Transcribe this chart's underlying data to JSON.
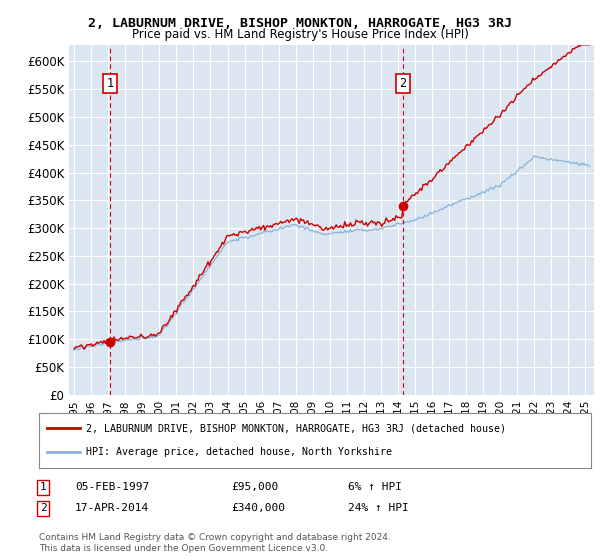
{
  "title": "2, LABURNUM DRIVE, BISHOP MONKTON, HARROGATE, HG3 3RJ",
  "subtitle": "Price paid vs. HM Land Registry's House Price Index (HPI)",
  "ytick_values": [
    0,
    50000,
    100000,
    150000,
    200000,
    250000,
    300000,
    350000,
    400000,
    450000,
    500000,
    550000,
    600000
  ],
  "ylim": [
    0,
    630000
  ],
  "xlim_start": 1994.7,
  "xlim_end": 2025.5,
  "bg_color": "#dce6f1",
  "grid_color": "#ffffff",
  "hpi_line_color": "#8ab4d8",
  "price_line_color": "#cc0000",
  "sale1_x": 1997.09,
  "sale1_y": 95000,
  "sale2_x": 2014.29,
  "sale2_y": 340000,
  "legend_price_label": "2, LABURNUM DRIVE, BISHOP MONKTON, HARROGATE, HG3 3RJ (detached house)",
  "legend_hpi_label": "HPI: Average price, detached house, North Yorkshire",
  "annotation1_label": "1",
  "annotation1_date": "05-FEB-1997",
  "annotation1_price": "£95,000",
  "annotation1_hpi": "6% ↑ HPI",
  "annotation2_label": "2",
  "annotation2_date": "17-APR-2014",
  "annotation2_price": "£340,000",
  "annotation2_hpi": "24% ↑ HPI",
  "copyright_text": "Contains HM Land Registry data © Crown copyright and database right 2024.\nThis data is licensed under the Open Government Licence v3.0.",
  "xtick_years": [
    1995,
    1996,
    1997,
    1998,
    1999,
    2000,
    2001,
    2002,
    2003,
    2004,
    2005,
    2006,
    2007,
    2008,
    2009,
    2010,
    2011,
    2012,
    2013,
    2014,
    2015,
    2016,
    2017,
    2018,
    2019,
    2020,
    2021,
    2022,
    2023,
    2024,
    2025
  ]
}
